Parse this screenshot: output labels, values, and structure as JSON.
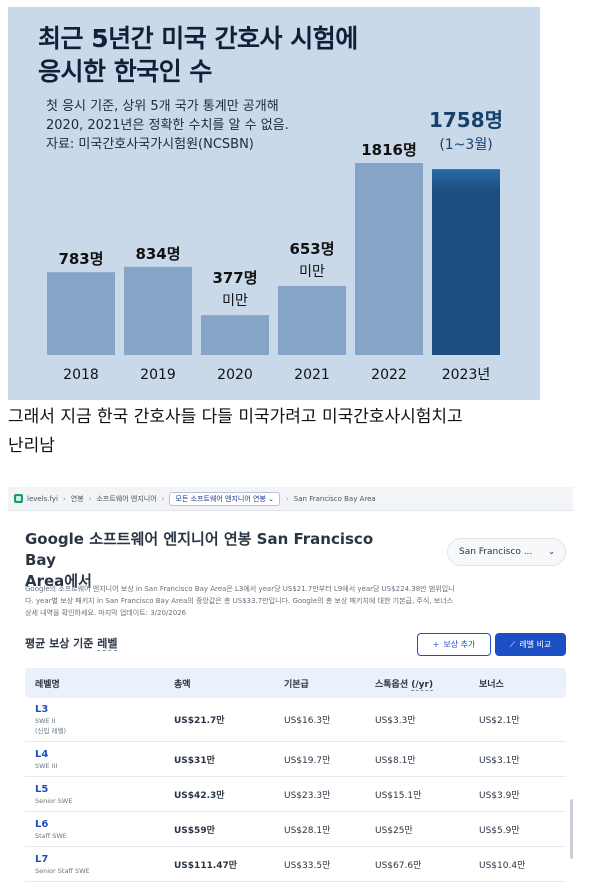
{
  "infographic": {
    "title_line1": "최근 5년간 미국 간호사 시험에",
    "title_line2": "응시한 한국인 수",
    "note_line1": "첫 응시 기준, 상위 5개 국가 통계만 공개해",
    "note_line2": "2020, 2021년은 정확한 수치를 알 수 없음.",
    "note_line3": "자료: 미국간호사국가시험원(NCSBN)"
  },
  "chart_data": {
    "type": "bar",
    "title": "최근 5년간 미국 간호사 시험에 응시한 한국인 수",
    "categories": [
      "2018",
      "2019",
      "2020",
      "2021",
      "2022",
      "2023년"
    ],
    "values": [
      783,
      834,
      377,
      653,
      1816,
      1758
    ],
    "value_labels": [
      "783명",
      "834명",
      "377명",
      "653명",
      "1816명",
      "1758명"
    ],
    "value_sublabels": [
      "",
      "",
      "미만",
      "미만",
      "",
      "(1~3월)"
    ],
    "colors": {
      "bar": "#86a4c6",
      "highlight": "#1c4e80",
      "highlight_top": "#2a6aa8",
      "text": "#111111",
      "highlight_text": "#17406b"
    },
    "highlight_index": 5,
    "ylim": [
      0,
      1900
    ],
    "grid": false,
    "legend": "none"
  },
  "caption": {
    "line1": "그래서 지금 한국 간호사들 다들 미국가려고 미국간호사시험치고",
    "line2": "난리남"
  },
  "levels": {
    "breadcrumb": {
      "site": "levels.fyi",
      "items": [
        "연봉",
        "소프트웨어 엔지니어"
      ],
      "select": "모든 소프트웨어 엔지니어 연봉",
      "location": "San Francisco Bay Area",
      "icons": {
        "separator": "chevron-right-icon",
        "select": "chevron-down-icon"
      }
    },
    "heading_line1": "Google 소프트웨어 엔지니어 연봉 San Francisco Bay",
    "heading_line2": "Area에서",
    "location_select": "San Francisco ...",
    "description_line1": "Google의 소프트웨어 엔지니어 보상 in San Francisco Bay Area은 L3에서 year당 US$21.7만부터 L9에서 year당 US$224.38만 범위입니",
    "description_line2": "다. year별 보상 패키지 in San Francisco Bay Area의 중앙값은 총 US$33.7만입니다. Google의 총 보상 패키지에 대한 기본급, 주식, 보너스",
    "description_line3": "상세 내역을 확인하세요. 마지막 업데이트: 3/20/2026",
    "section_label_pre": "평균 보상 기준 ",
    "section_label_link": "레벨",
    "add_comp_label": "보상 추가",
    "compare_label": "레벨 비교",
    "table": {
      "headers": [
        "레벨명",
        "총액",
        "기본급",
        "스톡옵션 ",
        "(/yr)",
        "보너스"
      ],
      "rows": [
        {
          "level": "L3",
          "title": "SWE II",
          "note": "(신입 레벨)",
          "total": "US$21.7만",
          "base": "US$16.3만",
          "stock": "US$3.3만",
          "bonus": "US$2.1만"
        },
        {
          "level": "L4",
          "title": "SWE III",
          "note": "",
          "total": "US$31만",
          "base": "US$19.7만",
          "stock": "US$8.1만",
          "bonus": "US$3.1만"
        },
        {
          "level": "L5",
          "title": "Senior SWE",
          "note": "",
          "total": "US$42.3만",
          "base": "US$23.3만",
          "stock": "US$15.1만",
          "bonus": "US$3.9만"
        },
        {
          "level": "L6",
          "title": "Staff SWE",
          "note": "",
          "total": "US$59만",
          "base": "US$28.1만",
          "stock": "US$25만",
          "bonus": "US$5.9만"
        },
        {
          "level": "L7",
          "title": "Senior Staff SWE",
          "note": "",
          "total": "US$111.47만",
          "base": "US$33.5만",
          "stock": "US$67.6만",
          "bonus": "US$10.4만"
        }
      ]
    }
  }
}
